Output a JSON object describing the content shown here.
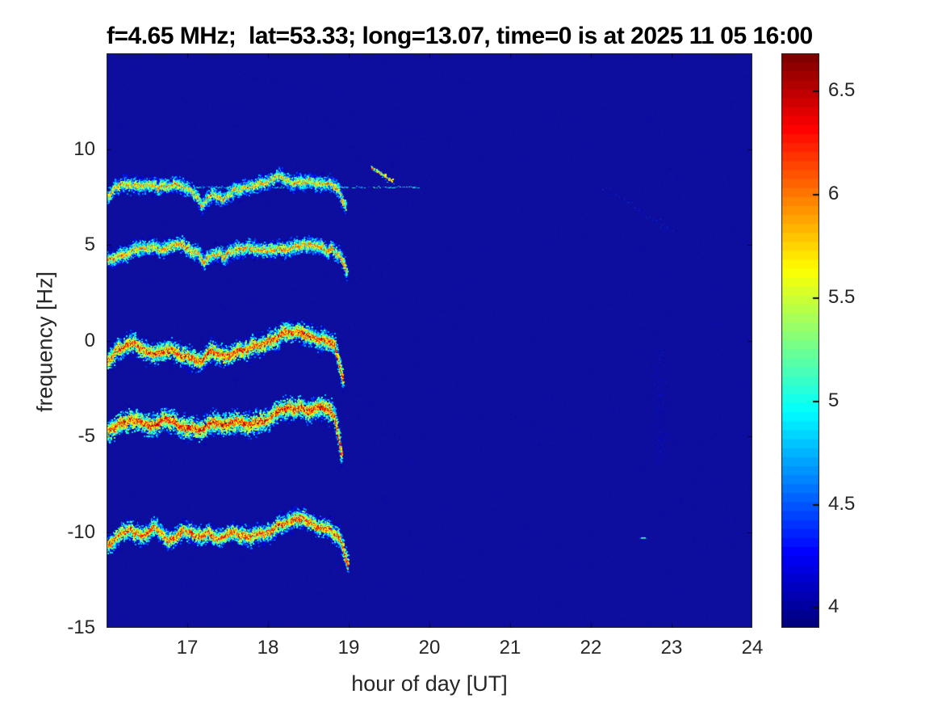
{
  "chart_data": {
    "type": "heatmap",
    "subtype": "doppler-spectrogram",
    "title": "f=4.65 MHz;  lat=53.33; long=13.07, time=0 is at 2025 11 05 16:00",
    "xlabel": "hour of day [UT]",
    "ylabel": "frequency [Hz]",
    "xlim": [
      16,
      24
    ],
    "ylim": [
      -15,
      15
    ],
    "xticks": [
      17,
      18,
      19,
      20,
      21,
      22,
      23,
      24
    ],
    "yticks": [
      10,
      5,
      0,
      -5,
      -10,
      -15
    ],
    "grid": false,
    "colormap": "jet",
    "plot_background_value": 3.95,
    "colorbar": {
      "position": "right",
      "vmin": 3.9,
      "vmax": 6.68,
      "ticks": [
        4,
        4.5,
        5,
        5.5,
        6,
        6.5
      ]
    },
    "traces": [
      {
        "name": "doppler-trace-+8Hz",
        "core_value": 6.15,
        "spread_hz": 0.38,
        "points": [
          [
            16.0,
            7.55
          ],
          [
            16.1,
            7.95
          ],
          [
            16.3,
            8.1
          ],
          [
            16.5,
            8.2
          ],
          [
            16.7,
            8.05
          ],
          [
            16.9,
            8.2
          ],
          [
            17.05,
            7.95
          ],
          [
            17.17,
            7.0
          ],
          [
            17.3,
            7.85
          ],
          [
            17.42,
            7.35
          ],
          [
            17.55,
            7.9
          ],
          [
            17.7,
            8.0
          ],
          [
            17.9,
            8.05
          ],
          [
            18.05,
            8.15
          ],
          [
            18.15,
            8.5
          ],
          [
            18.3,
            8.2
          ],
          [
            18.5,
            8.15
          ],
          [
            18.65,
            7.9
          ],
          [
            18.8,
            7.95
          ],
          [
            18.88,
            7.6
          ],
          [
            18.95,
            6.8
          ]
        ]
      },
      {
        "name": "doppler-trace-+5Hz",
        "core_value": 6.25,
        "spread_hz": 0.38,
        "points": [
          [
            16.0,
            4.3
          ],
          [
            16.15,
            4.7
          ],
          [
            16.35,
            4.9
          ],
          [
            16.55,
            4.95
          ],
          [
            16.75,
            4.7
          ],
          [
            16.95,
            4.8
          ],
          [
            17.1,
            4.55
          ],
          [
            17.2,
            3.9
          ],
          [
            17.32,
            4.55
          ],
          [
            17.45,
            4.25
          ],
          [
            17.6,
            4.7
          ],
          [
            17.8,
            4.8
          ],
          [
            18.0,
            4.85
          ],
          [
            18.2,
            4.95
          ],
          [
            18.35,
            5.25
          ],
          [
            18.5,
            5.05
          ],
          [
            18.65,
            4.85
          ],
          [
            18.8,
            4.7
          ],
          [
            18.9,
            4.25
          ],
          [
            18.97,
            3.4
          ]
        ]
      },
      {
        "name": "doppler-trace-0Hz",
        "core_value": 6.55,
        "spread_hz": 0.46,
        "points": [
          [
            16.0,
            -1.05
          ],
          [
            16.15,
            -0.55
          ],
          [
            16.35,
            -0.25
          ],
          [
            16.55,
            -0.45
          ],
          [
            16.75,
            -0.2
          ],
          [
            16.95,
            -0.55
          ],
          [
            17.15,
            -0.85
          ],
          [
            17.3,
            -0.35
          ],
          [
            17.45,
            -0.65
          ],
          [
            17.6,
            -0.3
          ],
          [
            17.75,
            -0.55
          ],
          [
            17.95,
            -0.35
          ],
          [
            18.1,
            -0.1
          ],
          [
            18.25,
            0.45
          ],
          [
            18.4,
            0.2
          ],
          [
            18.55,
            0.05
          ],
          [
            18.7,
            -0.2
          ],
          [
            18.82,
            -0.5
          ],
          [
            18.92,
            -2.1
          ]
        ]
      },
      {
        "name": "doppler-trace--4Hz",
        "core_value": 6.6,
        "spread_hz": 0.5,
        "points": [
          [
            16.0,
            -4.65
          ],
          [
            16.15,
            -4.25
          ],
          [
            16.35,
            -3.95
          ],
          [
            16.55,
            -4.15
          ],
          [
            16.75,
            -3.9
          ],
          [
            16.95,
            -4.3
          ],
          [
            17.15,
            -4.5
          ],
          [
            17.3,
            -3.95
          ],
          [
            17.45,
            -4.2
          ],
          [
            17.6,
            -3.9
          ],
          [
            17.75,
            -4.1
          ],
          [
            17.95,
            -3.9
          ],
          [
            18.1,
            -3.6
          ],
          [
            18.25,
            -3.3
          ],
          [
            18.4,
            -3.5
          ],
          [
            18.55,
            -3.65
          ],
          [
            18.7,
            -3.55
          ],
          [
            18.82,
            -3.95
          ],
          [
            18.9,
            -5.85
          ]
        ]
      },
      {
        "name": "doppler-trace--10Hz",
        "core_value": 6.5,
        "spread_hz": 0.42,
        "points": [
          [
            16.0,
            -10.6
          ],
          [
            16.15,
            -10.15
          ],
          [
            16.3,
            -9.9
          ],
          [
            16.45,
            -10.3
          ],
          [
            16.6,
            -9.95
          ],
          [
            16.75,
            -10.45
          ],
          [
            16.95,
            -10.05
          ],
          [
            17.1,
            -10.5
          ],
          [
            17.25,
            -10.15
          ],
          [
            17.4,
            -10.45
          ],
          [
            17.55,
            -10.1
          ],
          [
            17.7,
            -10.35
          ],
          [
            17.9,
            -10.15
          ],
          [
            18.1,
            -9.95
          ],
          [
            18.3,
            -9.65
          ],
          [
            18.45,
            -9.5
          ],
          [
            18.6,
            -9.8
          ],
          [
            18.75,
            -9.65
          ],
          [
            18.88,
            -10.0
          ],
          [
            18.98,
            -11.4
          ]
        ]
      }
    ],
    "features": [
      {
        "type": "streak",
        "from": [
          19.28,
          9.05
        ],
        "to": [
          19.55,
          8.35
        ],
        "value": 5.7
      },
      {
        "type": "faint_line",
        "freq": 8.0,
        "from_hour": 16.0,
        "to_hour": 19.9,
        "value": 4.9
      },
      {
        "type": "faint_streak",
        "from": [
          22.15,
          8.0
        ],
        "to": [
          23.05,
          5.6
        ],
        "value": 4.4
      },
      {
        "type": "faint_column",
        "hour": 22.85,
        "freq_from": -6.5,
        "freq_to": -0.5,
        "value": 4.3
      },
      {
        "type": "dash",
        "at": [
          22.62,
          -10.3
        ],
        "value": 5.2
      }
    ],
    "colors": {
      "plot_bg": "#0d0d9e",
      "text": "#262626",
      "title_color": "#000000",
      "axis_border": "#262626"
    }
  }
}
